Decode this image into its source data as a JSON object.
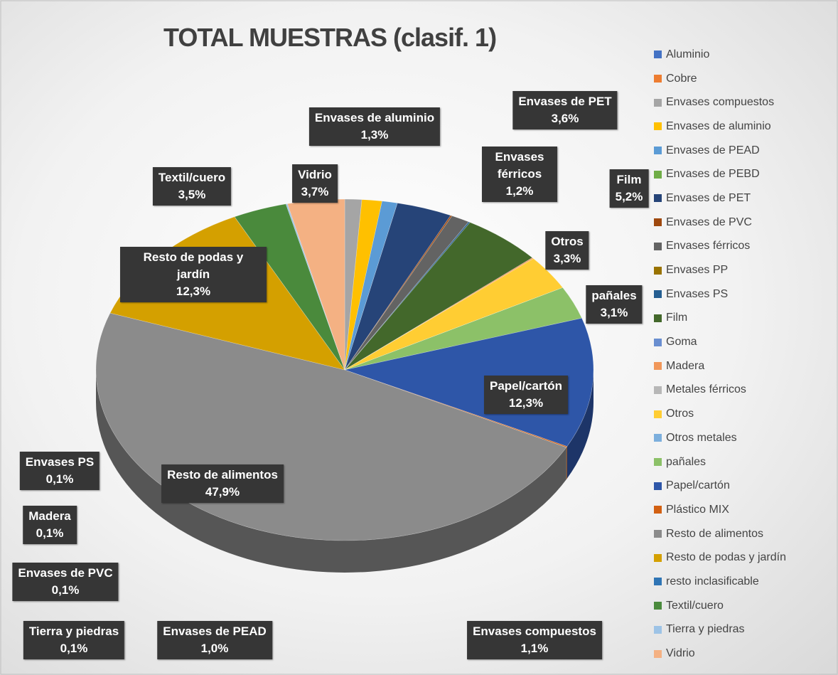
{
  "chart_data": {
    "type": "pie",
    "title": "TOTAL MUESTRAS (clasif. 1)",
    "categories": [
      "Aluminio",
      "Cobre",
      "Envases compuestos",
      "Envases de aluminio",
      "Envases de PEAD",
      "Envases de PEBD",
      "Envases de PET",
      "Envases de PVC",
      "Envases férricos",
      "Envases PP",
      "Envases PS",
      "Film",
      "Goma",
      "Madera",
      "Metales férricos",
      "Otros",
      "Otros metales",
      "pañales",
      "Papel/cartón",
      "Plástico MIX",
      "Resto de alimentos",
      "Resto de podas y jardín",
      "resto inclasificable",
      "Textil/cuero",
      "Tierra y piedras",
      "Vidrio"
    ],
    "values": [
      0,
      0,
      1.1,
      1.3,
      1.0,
      0,
      3.6,
      0.1,
      1.2,
      0,
      0.1,
      5.2,
      0,
      0.1,
      0,
      3.3,
      0,
      3.1,
      12.3,
      0.1,
      47.9,
      12.3,
      0,
      3.5,
      0.1,
      3.7
    ],
    "value_labels": [
      null,
      null,
      "1,1%",
      "1,3%",
      "1,0%",
      null,
      "3,6%",
      "0,1%",
      "1,2%",
      null,
      "0,1%",
      "5,2%",
      null,
      "0,1%",
      null,
      "3,3%",
      null,
      "3,1%",
      "12,3%",
      null,
      "47,9%",
      "12,3%",
      null,
      "3,5%",
      "0,1%",
      "3,7%"
    ],
    "colors": [
      "#4472c4",
      "#ed7d31",
      "#a5a5a5",
      "#ffc000",
      "#5b9bd5",
      "#70ad47",
      "#264478",
      "#9e480e",
      "#636363",
      "#997300",
      "#255e91",
      "#43682b",
      "#698ed0",
      "#f1975a",
      "#b7b7b7",
      "#ffcd33",
      "#7cafdd",
      "#8cc168",
      "#2e56a8",
      "#d26012",
      "#8b8b8b",
      "#d4a000",
      "#2f75b5",
      "#4a8a3c",
      "#9dc3e6",
      "#f4b183"
    ],
    "legend": "right"
  }
}
